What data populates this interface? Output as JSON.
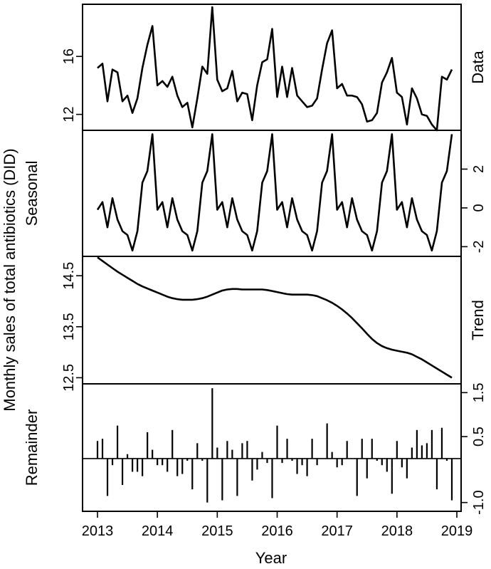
{
  "chart_data": {
    "type": "line",
    "title": "",
    "xlabel": "Year",
    "ylabel": "Monthly sales of total antibiotics (DID)",
    "x_ticks": [
      2013,
      2014,
      2015,
      2016,
      2017,
      2018,
      2019
    ],
    "x_start": 2013,
    "x_end": 2019,
    "panels": [
      {
        "name": "Data",
        "ylim": [
          10.9,
          19.6
        ],
        "ticks": [
          12,
          16
        ],
        "tick_labels": [
          "12",
          "16"
        ],
        "label_side": "left",
        "kind": "line",
        "values": [
          15.2,
          15.5,
          12.9,
          15.1,
          14.9,
          12.9,
          13.3,
          12.1,
          13.1,
          15.2,
          16.8,
          18.1,
          14.0,
          14.3,
          13.9,
          14.6,
          13.3,
          12.5,
          12.8,
          11.1,
          13.1,
          15.3,
          14.8,
          19.4,
          14.4,
          13.6,
          13.8,
          15.0,
          12.9,
          13.5,
          13.4,
          11.6,
          14.0,
          15.6,
          15.8,
          17.9,
          13.2,
          15.3,
          13.2,
          15.2,
          13.3,
          12.9,
          12.5,
          12.6,
          13.1,
          15.1,
          16.9,
          17.8,
          13.8,
          14.1,
          13.3,
          13.3,
          13.2,
          12.7,
          11.5,
          11.6,
          12.1,
          14.2,
          14.9,
          15.9,
          13.5,
          13.2,
          11.3,
          13.8,
          13.1,
          12.0,
          11.9,
          11.3,
          10.9,
          14.6,
          14.4,
          15.1
        ]
      },
      {
        "name": "Seasonal",
        "ylim": [
          -2.5,
          4.0
        ],
        "ticks": [
          -2,
          0,
          2
        ],
        "tick_labels": [
          "-2",
          "0",
          "2"
        ],
        "label_side": "right",
        "kind": "line",
        "values": [
          -0.1,
          0.3,
          -1.0,
          0.5,
          -0.6,
          -1.2,
          -1.4,
          -2.2,
          -1.2,
          1.3,
          1.9,
          3.8,
          -0.1,
          0.3,
          -1.0,
          0.5,
          -0.6,
          -1.2,
          -1.4,
          -2.2,
          -1.2,
          1.3,
          1.9,
          3.8,
          -0.1,
          0.3,
          -1.0,
          0.5,
          -0.6,
          -1.2,
          -1.4,
          -2.2,
          -1.2,
          1.3,
          1.9,
          3.8,
          -0.1,
          0.3,
          -1.0,
          0.5,
          -0.6,
          -1.2,
          -1.4,
          -2.2,
          -1.2,
          1.3,
          1.9,
          3.8,
          -0.1,
          0.3,
          -1.0,
          0.5,
          -0.6,
          -1.2,
          -1.4,
          -2.2,
          -1.2,
          1.3,
          1.9,
          3.8,
          -0.1,
          0.3,
          -1.0,
          0.5,
          -0.6,
          -1.2,
          -1.4,
          -2.2,
          -1.2,
          1.3,
          1.9,
          3.8
        ]
      },
      {
        "name": "Trend",
        "ylim": [
          12.38,
          14.88
        ],
        "ticks": [
          12.5,
          13.5,
          14.5
        ],
        "tick_labels": [
          "12.5",
          "13.5",
          "14.5"
        ],
        "label_side": "left",
        "kind": "line",
        "values": [
          14.86,
          14.79,
          14.72,
          14.65,
          14.58,
          14.52,
          14.46,
          14.4,
          14.34,
          14.29,
          14.25,
          14.21,
          14.17,
          14.13,
          14.09,
          14.06,
          14.04,
          14.03,
          14.03,
          14.03,
          14.04,
          14.06,
          14.09,
          14.13,
          14.17,
          14.21,
          14.23,
          14.24,
          14.24,
          14.23,
          14.23,
          14.23,
          14.23,
          14.23,
          14.22,
          14.2,
          14.18,
          14.16,
          14.14,
          14.13,
          14.13,
          14.13,
          14.13,
          14.12,
          14.1,
          14.06,
          14.02,
          13.97,
          13.91,
          13.84,
          13.76,
          13.67,
          13.57,
          13.47,
          13.36,
          13.26,
          13.18,
          13.12,
          13.08,
          13.05,
          13.03,
          13.01,
          12.99,
          12.96,
          12.91,
          12.86,
          12.8,
          12.74,
          12.68,
          12.62,
          12.56,
          12.5
        ]
      },
      {
        "name": "Remainder",
        "ylim": [
          -1.2,
          1.7
        ],
        "ticks": [
          -1.0,
          0.5,
          1.5
        ],
        "tick_labels": [
          "-1.0",
          "0.5",
          "1.5"
        ],
        "label_side": "right",
        "kind": "bar",
        "values": [
          0.4,
          0.45,
          -0.85,
          -0.15,
          0.75,
          -0.6,
          0.1,
          -0.3,
          -0.3,
          -0.4,
          0.6,
          0.2,
          -0.15,
          -0.15,
          -0.3,
          0.65,
          -0.4,
          -0.35,
          -0.05,
          -0.7,
          0.35,
          -0.05,
          -1.0,
          1.6,
          0.25,
          -0.95,
          0.4,
          0.2,
          -0.85,
          0.35,
          0.4,
          -0.5,
          -0.25,
          0.15,
          -0.1,
          -0.9,
          0.75,
          -0.1,
          0.45,
          -0.05,
          -0.35,
          -0.15,
          -0.4,
          0.45,
          -0.15,
          0.0,
          0.8,
          0.15,
          -0.2,
          -0.15,
          0.4,
          0.0,
          -0.85,
          0.45,
          -0.45,
          0.45,
          -0.05,
          -0.15,
          -0.3,
          -0.8,
          0.4,
          -0.2,
          -0.45,
          0.25,
          0.65,
          0.3,
          0.35,
          0.65,
          -0.7,
          0.7,
          -0.05,
          -0.95
        ]
      }
    ]
  }
}
